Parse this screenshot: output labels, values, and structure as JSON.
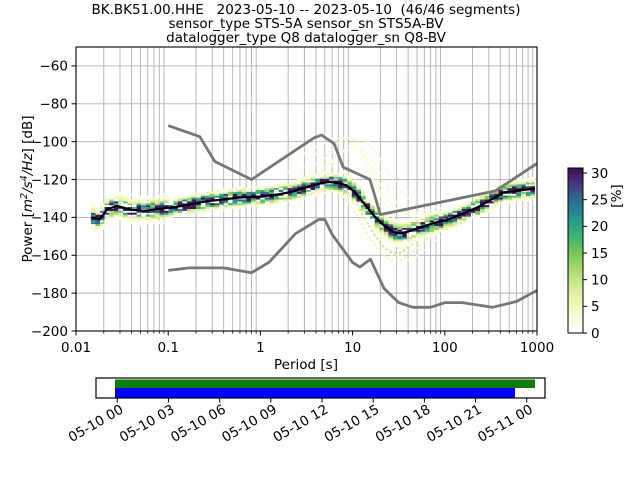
{
  "title": {
    "line1": "BK.BK51.00.HHE   2023-05-10 -- 2023-05-10  (46/46 segments)",
    "line2": "sensor_type STS-5A sensor_sn STS5A-BV",
    "line3": "datalogger_type Q8 datalogger_sn Q8-BV"
  },
  "axes": {
    "x": {
      "label": "Period [s]",
      "scale": "log",
      "range": [
        0.01,
        1000
      ],
      "ticks": [
        {
          "value": 0.01,
          "label": "0.01"
        },
        {
          "value": 0.1,
          "label": "0.1"
        },
        {
          "value": 1,
          "label": "1"
        },
        {
          "value": 10,
          "label": "10"
        },
        {
          "value": 100,
          "label": "100"
        },
        {
          "value": 1000,
          "label": "1000"
        }
      ]
    },
    "y": {
      "label_prefix": "Power [",
      "label_math": [
        [
          "m",
          "2"
        ],
        [
          "s",
          "4"
        ],
        [
          "Hz",
          ""
        ]
      ],
      "label_suffix": "] [dB]",
      "range": [
        -200,
        -50
      ],
      "ticks": [
        {
          "value": -60,
          "label": "−60"
        },
        {
          "value": -80,
          "label": "−80"
        },
        {
          "value": -100,
          "label": "−100"
        },
        {
          "value": -120,
          "label": "−120"
        },
        {
          "value": -140,
          "label": "−140"
        },
        {
          "value": -160,
          "label": "−160"
        },
        {
          "value": -180,
          "label": "−180"
        },
        {
          "value": -200,
          "label": "−200"
        }
      ]
    }
  },
  "colorbar": {
    "label": "[%]",
    "range": [
      0,
      30
    ],
    "ticks": [
      {
        "value": 30,
        "label": "30"
      },
      {
        "value": 25,
        "label": "25"
      },
      {
        "value": 20,
        "label": "20"
      },
      {
        "value": 15,
        "label": "15"
      },
      {
        "value": 10,
        "label": "10"
      },
      {
        "value": 5,
        "label": "5"
      },
      {
        "value": 0,
        "label": "0"
      }
    ],
    "stops": [
      [
        0.0,
        "#ffffff"
      ],
      [
        0.08,
        "#fbfce1"
      ],
      [
        0.16,
        "#f1f8bb"
      ],
      [
        0.25,
        "#ddf0a2"
      ],
      [
        0.33,
        "#c0e484"
      ],
      [
        0.42,
        "#97d368"
      ],
      [
        0.5,
        "#6cc45e"
      ],
      [
        0.58,
        "#42b46f"
      ],
      [
        0.66,
        "#2aa286"
      ],
      [
        0.74,
        "#26858e"
      ],
      [
        0.82,
        "#31648c"
      ],
      [
        0.9,
        "#443983"
      ],
      [
        1.0,
        "#440b54"
      ]
    ]
  },
  "coverage": {
    "axis_labels": [
      "05-10 00",
      "05-10 03",
      "05-10 06",
      "05-10 09",
      "05-10 12",
      "05-10 15",
      "05-10 18",
      "05-10 21",
      "05-11 00"
    ],
    "data_color": "#0c7c0c",
    "segments_color": "#0000ff"
  },
  "style_colors": {
    "grid": "#b2b2b2",
    "noise_model": "#777777",
    "mean_line": "#000000"
  },
  "chart_data": {
    "type": "heatmap",
    "title": "BK.BK51.00.HHE 2023-05-10 -- 2023-05-10 (46/46 segments)",
    "xlabel": "Period [s]",
    "ylabel": "Power [m^2/s^4/Hz] [dB]",
    "x_scale": "log",
    "xlim": [
      0.01,
      1000
    ],
    "ylim": [
      -200,
      -50
    ],
    "color_axis": {
      "label": "[%]",
      "range": [
        0,
        30
      ],
      "colormap": "white-to-dark viridis-like (obspy sequential)"
    },
    "grid": true,
    "series": [
      {
        "name": "psd-mean-curve",
        "period_s": [
          0.015,
          0.018,
          0.022,
          0.028,
          0.04,
          0.055,
          0.08,
          0.12,
          0.18,
          0.26,
          0.4,
          0.6,
          1.0,
          1.5,
          2.2,
          3.2,
          4.5,
          5.5,
          7.0,
          8.5,
          10.5,
          13,
          17,
          22,
          28,
          33,
          40,
          50,
          65,
          85,
          110,
          140,
          180,
          230,
          300,
          380,
          430,
          520,
          650,
          800,
          950
        ],
        "db": [
          -140,
          -141,
          -135.5,
          -134,
          -136,
          -136.5,
          -135.5,
          -134.5,
          -133,
          -131.5,
          -130.5,
          -129.5,
          -129,
          -128,
          -126.5,
          -124,
          -122,
          -121.3,
          -121.8,
          -123,
          -126.5,
          -132,
          -139,
          -144.5,
          -147.8,
          -148.5,
          -147.5,
          -146,
          -144,
          -142.3,
          -141,
          -139,
          -136.8,
          -134.5,
          -131.3,
          -128.6,
          -126.8,
          -126.4,
          -125.7,
          -125.2,
          -124.8
        ]
      },
      {
        "name": "noise-model-high-NHNM",
        "period_s": [
          0.1,
          0.22,
          0.32,
          0.8,
          3.8,
          4.6,
          6.3,
          7.9,
          15.4,
          20.0,
          354.8,
          1000
        ],
        "db": [
          -91.5,
          -97.4,
          -110.5,
          -120.0,
          -98.0,
          -96.5,
          -101.0,
          -113.5,
          -120.0,
          -138.5,
          -126.0,
          -111.5
        ]
      },
      {
        "name": "noise-model-low-NLNM",
        "period_s": [
          0.1,
          0.17,
          0.4,
          0.8,
          1.24,
          2.4,
          4.3,
          5.0,
          6.0,
          10.0,
          12.0,
          15.6,
          21.9,
          31.6,
          45.0,
          70.0,
          101.0,
          154.0,
          328.0,
          600.0,
          1000
        ],
        "db": [
          -168.0,
          -166.7,
          -166.7,
          -169.2,
          -163.7,
          -148.6,
          -141.1,
          -141.1,
          -149.0,
          -163.8,
          -166.2,
          -162.1,
          -177.5,
          -185.0,
          -187.5,
          -187.5,
          -185.0,
          -185.0,
          -187.5,
          -184.4,
          -178.5
        ]
      }
    ],
    "histogram": {
      "period_range_s": [
        0.0145,
        950
      ],
      "db_bin_width": 1,
      "percent_range": [
        0,
        30
      ],
      "main_band_halfwidth_db": 8
    },
    "coverage_bar": {
      "tick_labels": [
        "05-10 00",
        "05-10 03",
        "05-10 06",
        "05-10 09",
        "05-10 12",
        "05-10 15",
        "05-10 18",
        "05-10 21",
        "05-11 00"
      ],
      "data_bar": "green",
      "segments_bar": "blue"
    }
  }
}
